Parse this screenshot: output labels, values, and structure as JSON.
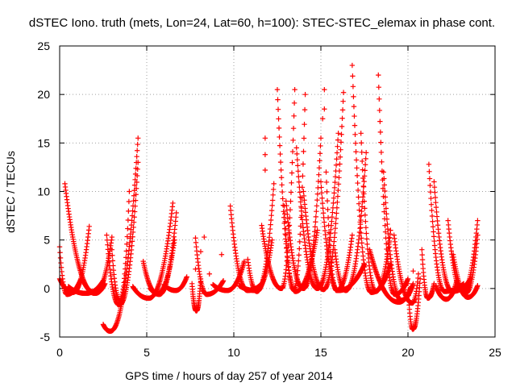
{
  "chart_data": {
    "type": "scatter",
    "title": "dSTEC Iono. truth (mets, Lon=24, Lat=60, h=100): STEC-STEC_elemax in phase cont.",
    "xlabel": "GPS time / hours of day 257 of year 2014",
    "ylabel": "dSTEC  / TECUs",
    "xlim": [
      0,
      25
    ],
    "ylim": [
      -5,
      25
    ],
    "xticks": [
      "0",
      "5",
      "10",
      "15",
      "20",
      "25"
    ],
    "yticks": [
      "-5",
      "0",
      "5",
      "10",
      "15",
      "20",
      "25"
    ],
    "grid": true,
    "marker": "+",
    "color": "#ff0000",
    "arcs": [
      {
        "start": 0.0,
        "end": 1.2,
        "y_start": 4.3,
        "y_min": -0.6,
        "y_end": 0.9,
        "min_at": 0.35
      },
      {
        "start": 0.3,
        "end": 2.6,
        "y_start": 10.8,
        "y_min": -0.5,
        "y_end": 0.5,
        "min_at": 0.75
      },
      {
        "start": 0.0,
        "end": 1.7,
        "y_start": 1.0,
        "y_min": -0.4,
        "y_end": 6.4,
        "min_at": 0.45
      },
      {
        "start": 0.5,
        "end": 2.5,
        "y_start": 0.2,
        "y_min": -0.5,
        "y_end": 0.8,
        "min_at": 0.5
      },
      {
        "start": 1.4,
        "end": 3.0,
        "y_start": 0.6,
        "y_min": -0.4,
        "y_end": 5.3,
        "min_at": 0.4
      },
      {
        "start": 2.5,
        "end": 4.5,
        "y_start": -3.7,
        "y_min": -4.4,
        "y_end": 15.5,
        "min_at": 0.2
      },
      {
        "start": 2.7,
        "end": 4.5,
        "y_start": 5.5,
        "y_min": -1.7,
        "y_end": 13.0,
        "min_at": 0.4
      },
      {
        "start": 3.0,
        "end": 4.0,
        "y_start": 4.0,
        "y_min": -1.2,
        "y_end": 10.0,
        "min_at": 0.45
      },
      {
        "start": 4.2,
        "end": 6.5,
        "y_start": 0.2,
        "y_min": -1.0,
        "y_end": 8.8,
        "min_at": 0.4
      },
      {
        "start": 4.8,
        "end": 6.6,
        "y_start": 2.8,
        "y_min": -0.5,
        "y_end": 5.0,
        "min_at": 0.45
      },
      {
        "start": 5.2,
        "end": 6.7,
        "y_start": 0.0,
        "y_min": -0.6,
        "y_end": 7.8,
        "min_at": 0.35
      },
      {
        "start": 6.0,
        "end": 7.3,
        "y_start": 0.4,
        "y_min": -0.2,
        "y_end": 1.2,
        "min_at": 0.5
      },
      {
        "start": 7.6,
        "end": 8.1,
        "y_start": 0.5,
        "y_min": -2.3,
        "y_end": 1.0,
        "min_at": 0.5
      },
      {
        "start": 7.8,
        "end": 9.4,
        "y_start": 5.2,
        "y_min": -0.6,
        "y_end": 0.8,
        "min_at": 0.4
      },
      {
        "start": 8.8,
        "end": 10.6,
        "y_start": 0.4,
        "y_min": -0.2,
        "y_end": 2.8,
        "min_at": 0.45
      },
      {
        "start": 9.8,
        "end": 11.6,
        "y_start": 8.5,
        "y_min": -0.2,
        "y_end": 0.5,
        "min_at": 0.55
      },
      {
        "start": 10.3,
        "end": 12.2,
        "y_start": 0.3,
        "y_min": -0.2,
        "y_end": 5.0,
        "min_at": 0.5
      },
      {
        "start": 10.8,
        "end": 12.3,
        "y_start": 3.0,
        "y_min": -0.3,
        "y_end": 10.8,
        "min_at": 0.35
      },
      {
        "start": 11.6,
        "end": 13.5,
        "y_start": 6.5,
        "y_min": 0.0,
        "y_end": 20.5,
        "min_at": 0.6
      },
      {
        "start": 12.5,
        "end": 14.8,
        "y_start": 20.5,
        "y_min": -0.3,
        "y_end": 6.0,
        "min_at": 0.45
      },
      {
        "start": 12.9,
        "end": 14.1,
        "y_start": 8.5,
        "y_min": -0.1,
        "y_end": 20.0,
        "min_at": 0.45
      },
      {
        "start": 13.0,
        "end": 15.0,
        "y_start": 9.0,
        "y_min": 0.0,
        "y_end": 15.5,
        "min_at": 0.5
      },
      {
        "start": 13.6,
        "end": 16.0,
        "y_start": 14.5,
        "y_min": 0.0,
        "y_end": 16.0,
        "min_at": 0.5
      },
      {
        "start": 14.0,
        "end": 16.3,
        "y_start": 10.0,
        "y_min": -0.1,
        "y_end": 20.2,
        "min_at": 0.5
      },
      {
        "start": 15.0,
        "end": 17.5,
        "y_start": 11.0,
        "y_min": -0.2,
        "y_end": 2.5,
        "min_at": 0.4
      },
      {
        "start": 15.3,
        "end": 16.8,
        "y_start": 12.0,
        "y_min": -0.2,
        "y_end": 5.5,
        "min_at": 0.4
      },
      {
        "start": 15.8,
        "end": 17.6,
        "y_start": 4.0,
        "y_min": -0.2,
        "y_end": 14.0,
        "min_at": 0.35
      },
      {
        "start": 16.8,
        "end": 19.0,
        "y_start": 23.0,
        "y_min": -0.4,
        "y_end": 2.5,
        "min_at": 0.5
      },
      {
        "start": 17.3,
        "end": 19.0,
        "y_start": 16.0,
        "y_min": -0.3,
        "y_end": 6.0,
        "min_at": 0.5
      },
      {
        "start": 18.3,
        "end": 20.0,
        "y_start": 22.0,
        "y_min": -0.6,
        "y_end": 1.0,
        "min_at": 0.55
      },
      {
        "start": 18.6,
        "end": 20.3,
        "y_start": 12.0,
        "y_min": -1.2,
        "y_end": 0.5,
        "min_at": 0.6
      },
      {
        "start": 17.8,
        "end": 20.2,
        "y_start": 4.0,
        "y_min": -1.4,
        "y_end": 0.2,
        "min_at": 0.7
      },
      {
        "start": 19.2,
        "end": 20.6,
        "y_start": 5.5,
        "y_min": -1.5,
        "y_end": 1.5,
        "min_at": 0.75
      },
      {
        "start": 20.0,
        "end": 20.7,
        "y_start": 0.5,
        "y_min": -4.2,
        "y_end": 1.0,
        "min_at": 0.4
      },
      {
        "start": 20.8,
        "end": 21.5,
        "y_start": 4.0,
        "y_min": -1.0,
        "y_end": 0.5,
        "min_at": 0.5
      },
      {
        "start": 21.2,
        "end": 23.2,
        "y_start": 12.8,
        "y_min": -0.3,
        "y_end": 0.5,
        "min_at": 0.45
      },
      {
        "start": 21.5,
        "end": 23.6,
        "y_start": 11.0,
        "y_min": -0.3,
        "y_end": 1.0,
        "min_at": 0.5
      },
      {
        "start": 21.6,
        "end": 22.8,
        "y_start": 0.3,
        "y_min": -1.1,
        "y_end": 0.8,
        "min_at": 0.5
      },
      {
        "start": 22.3,
        "end": 24.0,
        "y_start": 7.0,
        "y_min": -0.3,
        "y_end": 7.0,
        "min_at": 0.5
      },
      {
        "start": 22.6,
        "end": 24.0,
        "y_start": 3.5,
        "y_min": -0.9,
        "y_end": 0.3,
        "min_at": 0.6
      },
      {
        "start": 23.0,
        "end": 24.0,
        "y_start": 0.2,
        "y_min": -0.5,
        "y_end": 5.5,
        "min_at": 0.3
      }
    ],
    "scatter_points": [
      [
        11.8,
        15.5
      ],
      [
        11.8,
        13.8
      ],
      [
        11.8,
        12.2
      ],
      [
        15.2,
        20.5
      ],
      [
        15.2,
        18.5
      ],
      [
        15.1,
        17.5
      ],
      [
        7.8,
        2.0
      ],
      [
        8.1,
        3.8
      ],
      [
        8.3,
        5.3
      ],
      [
        8.6,
        1.5
      ],
      [
        9.3,
        3.5
      ],
      [
        20.3,
        1.8
      ],
      [
        20.2,
        -1.5
      ],
      [
        21.3,
        -0.8
      ]
    ]
  }
}
